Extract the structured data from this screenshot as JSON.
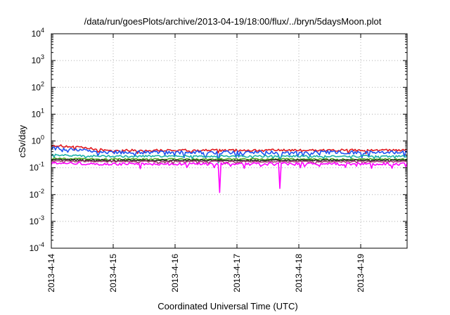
{
  "chart_data": {
    "type": "line",
    "title": "/data/run/goesPlots/archive/2013-04-19/18:00/flux/../bryn/5daysMoon.plot",
    "xlabel": "Coordinated Universal Time (UTC)",
    "ylabel": "cSv/day",
    "yscale": "log",
    "ylim": [
      0.0001,
      10000
    ],
    "y_ticks": [
      {
        "value": 0.0001,
        "base": "10",
        "exp": "-4"
      },
      {
        "value": 0.001,
        "base": "10",
        "exp": "-3"
      },
      {
        "value": 0.01,
        "base": "10",
        "exp": "-2"
      },
      {
        "value": 0.1,
        "base": "10",
        "exp": "-1"
      },
      {
        "value": 1,
        "base": "10",
        "exp": "0"
      },
      {
        "value": 10,
        "base": "10",
        "exp": "1"
      },
      {
        "value": 100,
        "base": "10",
        "exp": "2"
      },
      {
        "value": 1000,
        "base": "10",
        "exp": "3"
      },
      {
        "value": 10000,
        "base": "10",
        "exp": "4"
      }
    ],
    "xlim": [
      "2013-04-14T00:00",
      "2013-04-19T18:00"
    ],
    "x_ticks": [
      "2013-4-14",
      "2013-4-15",
      "2013-4-16",
      "2013-4-17",
      "2013-4-18",
      "2013-4-19"
    ],
    "x_tick_dates": [
      "2013-04-14",
      "2013-04-15",
      "2013-04-16",
      "2013-04-17",
      "2013-04-18",
      "2013-04-19"
    ],
    "grid": true,
    "series": [
      {
        "color": "#e0191f",
        "base": 0.45,
        "start": 0.7,
        "noise": 0.1,
        "dips": []
      },
      {
        "color": "#2052f0",
        "base": 0.38,
        "start": 0.55,
        "noise": 0.14,
        "dips": [
          {
            "x": "2013-04-16T17:00",
            "value": 0.18
          },
          {
            "x": "2013-04-17T16:30",
            "value": 0.2
          }
        ]
      },
      {
        "color": "#1ab0a8",
        "base": 0.27,
        "start": 0.3,
        "noise": 0.08,
        "dips": [
          {
            "x": "2013-04-16T17:00",
            "value": 0.15
          },
          {
            "x": "2013-04-17T16:30",
            "value": 0.16
          }
        ]
      },
      {
        "color": "#55aa22",
        "base": 0.21,
        "start": 0.22,
        "noise": 0.06,
        "dips": []
      },
      {
        "color": "#222222",
        "base": 0.19,
        "start": 0.2,
        "noise": 0.05,
        "dips": []
      },
      {
        "color": "#a04070",
        "base": 0.17,
        "start": 0.18,
        "noise": 0.06,
        "dips": []
      },
      {
        "color": "#ff00ff",
        "base": 0.14,
        "start": 0.15,
        "noise": 0.12,
        "dips": [
          {
            "x": "2013-04-16T17:30",
            "value": 0.012
          },
          {
            "x": "2013-04-17T16:30",
            "value": 0.017
          }
        ]
      }
    ]
  }
}
